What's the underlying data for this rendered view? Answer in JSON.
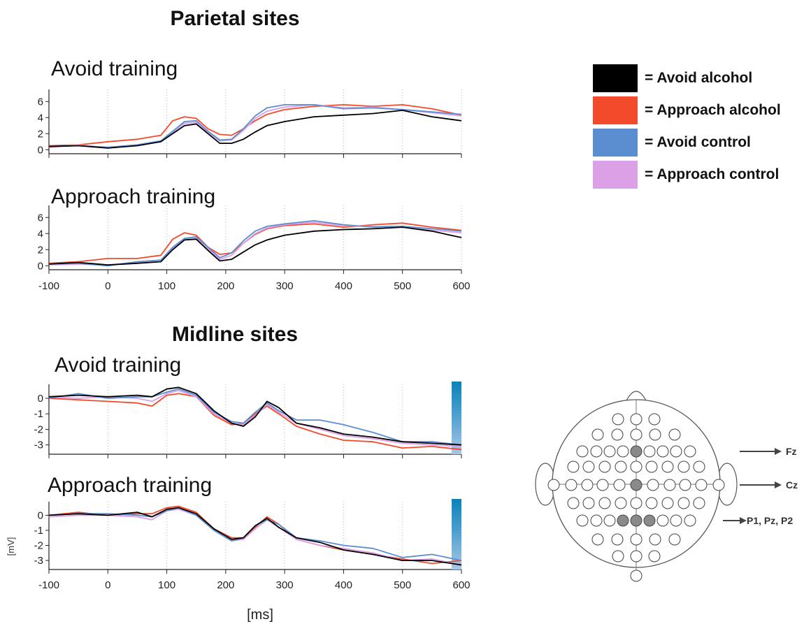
{
  "sections": [
    {
      "title": "Parietal sites"
    },
    {
      "title": "Midline sites"
    }
  ],
  "x_axis_label": "[ms]",
  "y_axis_label": "[mV]",
  "legend": [
    {
      "label": "= Avoid alcohol",
      "color": "#000000"
    },
    {
      "label": "= Approach alcohol",
      "color": "#f44a2c"
    },
    {
      "label": "= Avoid control",
      "color": "#5b8ed1"
    },
    {
      "label": "= Approach control",
      "color": "#dba0e6"
    }
  ],
  "electrode_map": {
    "annotations": [
      "Fz",
      "Cz",
      "P1, Pz, P2"
    ]
  },
  "chart_data": [
    {
      "type": "line",
      "section": "Parietal sites",
      "title": "Avoid training",
      "xlim": [
        -100,
        600
      ],
      "ylim": [
        -0.5,
        7.5
      ],
      "xticks": [
        -100,
        0,
        100,
        200,
        300,
        400,
        500,
        600
      ],
      "yticks": [
        0,
        2,
        4,
        6
      ],
      "grid": "vertical dotted",
      "x": [
        -100,
        -50,
        0,
        50,
        90,
        110,
        130,
        150,
        170,
        190,
        210,
        230,
        250,
        270,
        300,
        350,
        400,
        450,
        500,
        550,
        600
      ],
      "series": [
        {
          "name": "Avoid alcohol",
          "color": "#000000",
          "values": [
            0.4,
            0.5,
            0.2,
            0.5,
            1.0,
            2.0,
            3.0,
            3.2,
            2.0,
            0.8,
            0.8,
            1.3,
            2.2,
            3.0,
            3.5,
            4.1,
            4.3,
            4.5,
            4.9,
            4.1,
            3.6
          ]
        },
        {
          "name": "Approach alcohol",
          "color": "#f44a2c",
          "values": [
            0.5,
            0.6,
            1.0,
            1.3,
            1.8,
            3.6,
            4.1,
            3.9,
            2.6,
            1.9,
            1.8,
            2.6,
            3.6,
            4.4,
            5.0,
            5.4,
            5.6,
            5.4,
            5.6,
            5.1,
            4.3
          ]
        },
        {
          "name": "Avoid control",
          "color": "#5b8ed1",
          "values": [
            0.4,
            0.5,
            0.3,
            0.6,
            1.1,
            2.3,
            3.5,
            3.6,
            2.3,
            1.2,
            1.3,
            2.6,
            4.2,
            5.2,
            5.6,
            5.6,
            5.1,
            5.2,
            5.0,
            4.7,
            4.4
          ]
        },
        {
          "name": "Approach control",
          "color": "#dba0e6",
          "values": [
            0.3,
            0.6,
            0.2,
            0.6,
            1.0,
            2.1,
            3.3,
            3.4,
            2.2,
            1.1,
            1.2,
            2.4,
            3.9,
            4.8,
            5.3,
            5.6,
            5.2,
            5.3,
            5.0,
            4.6,
            4.2
          ]
        }
      ]
    },
    {
      "type": "line",
      "section": "Parietal sites",
      "title": "Approach training",
      "xlim": [
        -100,
        600
      ],
      "ylim": [
        -0.5,
        7.5
      ],
      "xticks": [
        -100,
        0,
        100,
        200,
        300,
        400,
        500,
        600
      ],
      "yticks": [
        0,
        2,
        4,
        6
      ],
      "grid": "vertical dotted",
      "x": [
        -100,
        -50,
        0,
        50,
        90,
        110,
        130,
        150,
        170,
        190,
        210,
        230,
        250,
        270,
        300,
        350,
        400,
        450,
        500,
        550,
        600
      ],
      "series": [
        {
          "name": "Avoid alcohol",
          "color": "#000000",
          "values": [
            0.2,
            0.4,
            0.1,
            0.3,
            0.5,
            2.0,
            3.2,
            3.3,
            1.9,
            0.6,
            0.8,
            1.7,
            2.6,
            3.2,
            3.8,
            4.3,
            4.5,
            4.6,
            4.8,
            4.3,
            3.5
          ]
        },
        {
          "name": "Approach alcohol",
          "color": "#f44a2c",
          "values": [
            0.3,
            0.5,
            0.9,
            0.9,
            1.3,
            3.3,
            4.1,
            3.8,
            2.3,
            1.4,
            1.6,
            2.8,
            3.9,
            4.6,
            5.0,
            5.2,
            4.8,
            5.1,
            5.3,
            4.8,
            4.4
          ]
        },
        {
          "name": "Avoid control",
          "color": "#5b8ed1",
          "values": [
            0.2,
            0.3,
            0.0,
            0.5,
            0.7,
            2.3,
            3.4,
            3.6,
            2.3,
            1.0,
            1.6,
            3.1,
            4.3,
            4.9,
            5.2,
            5.6,
            5.1,
            4.8,
            4.9,
            4.6,
            4.3
          ]
        },
        {
          "name": "Approach control",
          "color": "#dba0e6",
          "values": [
            0.1,
            0.2,
            0.1,
            0.4,
            0.5,
            2.1,
            3.3,
            3.4,
            2.1,
            0.8,
            1.3,
            2.8,
            4.0,
            4.7,
            5.1,
            5.4,
            5.0,
            4.9,
            4.9,
            4.4,
            4.1
          ]
        }
      ]
    },
    {
      "type": "line",
      "section": "Midline sites",
      "title": "Avoid training",
      "xlim": [
        -100,
        600
      ],
      "ylim": [
        -3.6,
        0.9
      ],
      "xticks": [
        -100,
        0,
        100,
        200,
        300,
        400,
        500,
        600
      ],
      "yticks": [
        0,
        -1,
        -2,
        -3
      ],
      "grid": "vertical dotted",
      "x": [
        -100,
        -50,
        0,
        50,
        75,
        100,
        120,
        150,
        180,
        210,
        230,
        250,
        270,
        290,
        320,
        360,
        400,
        450,
        500,
        550,
        600
      ],
      "series": [
        {
          "name": "Avoid alcohol",
          "color": "#000000",
          "values": [
            0.1,
            0.2,
            0.1,
            0.2,
            0.1,
            0.6,
            0.7,
            0.3,
            -0.8,
            -1.6,
            -1.8,
            -1.2,
            -0.2,
            -0.6,
            -1.6,
            -1.9,
            -2.3,
            -2.5,
            -2.8,
            -2.9,
            -3.0
          ]
        },
        {
          "name": "Approach alcohol",
          "color": "#f44a2c",
          "values": [
            0.0,
            -0.1,
            -0.2,
            -0.3,
            -0.5,
            0.2,
            0.3,
            0.1,
            -1.1,
            -1.7,
            -1.6,
            -1.0,
            -0.5,
            -1.0,
            -1.8,
            -2.3,
            -2.7,
            -2.8,
            -3.2,
            -3.1,
            -3.3
          ]
        },
        {
          "name": "Avoid control",
          "color": "#5b8ed1",
          "values": [
            0.0,
            0.3,
            0.0,
            0.1,
            0.1,
            0.4,
            0.6,
            0.2,
            -0.9,
            -1.5,
            -1.6,
            -0.9,
            -0.3,
            -0.8,
            -1.4,
            -1.4,
            -1.7,
            -2.2,
            -2.8,
            -2.8,
            -3.0
          ]
        },
        {
          "name": "Approach control",
          "color": "#dba0e6",
          "values": [
            0.1,
            0.0,
            0.1,
            0.0,
            -0.2,
            0.3,
            0.5,
            0.1,
            -1.0,
            -1.6,
            -1.7,
            -1.1,
            -0.4,
            -0.9,
            -1.6,
            -2.0,
            -2.4,
            -2.6,
            -2.9,
            -3.0,
            -3.1
          ]
        }
      ]
    },
    {
      "type": "line",
      "section": "Midline sites",
      "title": "Approach training",
      "xlim": [
        -100,
        600
      ],
      "ylim": [
        -3.6,
        0.9
      ],
      "xticks": [
        -100,
        0,
        100,
        200,
        300,
        400,
        500,
        600
      ],
      "yticks": [
        0,
        -1,
        -2,
        -3
      ],
      "grid": "vertical dotted",
      "x": [
        -100,
        -50,
        0,
        50,
        75,
        100,
        120,
        150,
        180,
        210,
        230,
        250,
        270,
        290,
        320,
        360,
        400,
        450,
        500,
        550,
        600
      ],
      "series": [
        {
          "name": "Avoid alcohol",
          "color": "#000000",
          "values": [
            0.0,
            0.1,
            0.0,
            0.2,
            -0.1,
            0.4,
            0.5,
            0.1,
            -0.9,
            -1.6,
            -1.5,
            -0.7,
            -0.2,
            -0.8,
            -1.5,
            -1.8,
            -2.3,
            -2.6,
            -3.0,
            -3.0,
            -3.3
          ]
        },
        {
          "name": "Approach alcohol",
          "color": "#f44a2c",
          "values": [
            0.0,
            0.2,
            0.0,
            0.1,
            0.1,
            0.5,
            0.6,
            0.2,
            -0.9,
            -1.5,
            -1.5,
            -0.8,
            -0.1,
            -0.6,
            -1.6,
            -2.0,
            -2.3,
            -2.6,
            -2.9,
            -3.2,
            -3.0
          ]
        },
        {
          "name": "Avoid control",
          "color": "#5b8ed1",
          "values": [
            0.0,
            0.1,
            0.1,
            0.0,
            -0.1,
            0.3,
            0.5,
            0.0,
            -1.0,
            -1.7,
            -1.5,
            -0.7,
            -0.3,
            -0.6,
            -1.5,
            -1.7,
            -2.0,
            -2.2,
            -2.8,
            -2.6,
            -3.0
          ]
        },
        {
          "name": "Approach control",
          "color": "#dba0e6",
          "values": [
            -0.1,
            0.0,
            0.0,
            -0.1,
            -0.3,
            0.3,
            0.4,
            0.0,
            -1.0,
            -1.7,
            -1.6,
            -0.9,
            -0.3,
            -0.8,
            -1.6,
            -2.0,
            -2.2,
            -2.5,
            -3.0,
            -2.9,
            -3.3
          ]
        }
      ]
    }
  ]
}
